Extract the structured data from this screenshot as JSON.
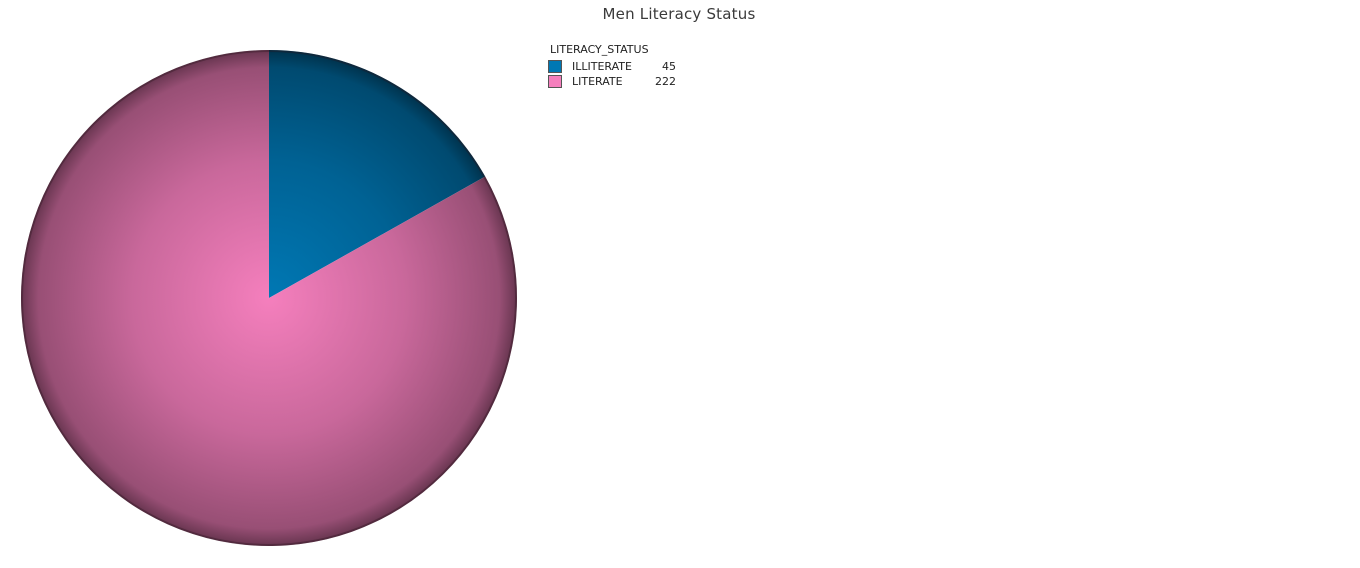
{
  "chart_data": {
    "type": "pie",
    "title": "Men Literacy Status",
    "legend_title": "LITERACY_STATUS",
    "legend_position": "top-right",
    "slices": [
      {
        "label": "ILLITERATE",
        "value": 45,
        "value_label": "45",
        "color": "#0078b4"
      },
      {
        "label": "LITERATE",
        "value": 222,
        "value_label": "222",
        "color": "#f57fbd"
      }
    ]
  }
}
